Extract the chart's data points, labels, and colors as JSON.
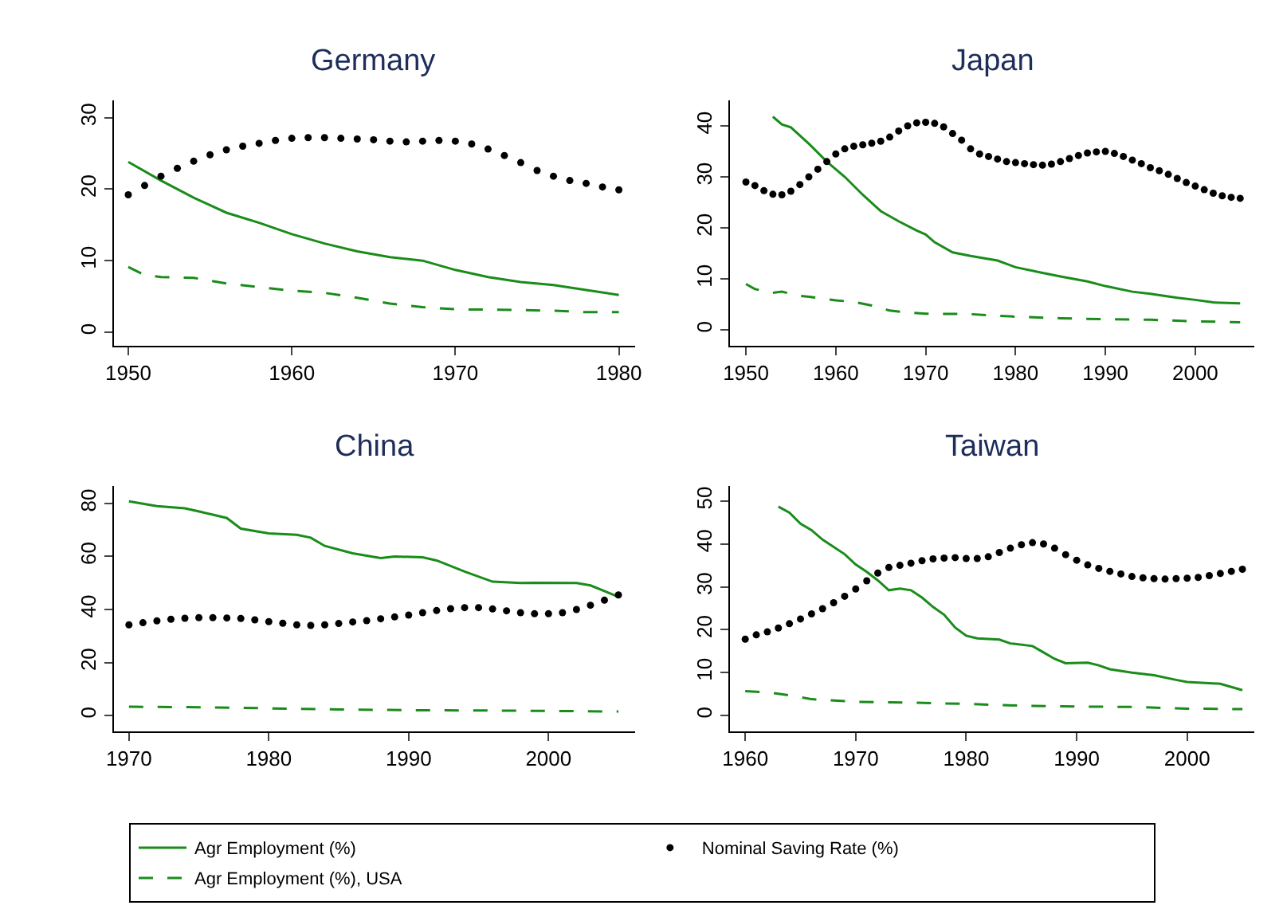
{
  "chart_data": [
    {
      "type": "line",
      "title": "Germany",
      "xlim": [
        1949.1,
        1981
      ],
      "xticks": [
        1950,
        1960,
        1970,
        1980
      ],
      "ylim": [
        -1.9,
        32.4
      ],
      "yticks": [
        0,
        10,
        20,
        30
      ],
      "grid": false,
      "legend": "bottom",
      "series": [
        {
          "name": "Agr Employment (%)",
          "type": "line",
          "line_style": "solid",
          "color": "#1a8c1a",
          "x": [
            1950,
            1952,
            1954,
            1956,
            1958,
            1960,
            1962,
            1964,
            1966,
            1968,
            1970,
            1972,
            1974,
            1976,
            1978,
            1980
          ],
          "values": [
            23.8,
            21.2,
            18.8,
            16.7,
            15.3,
            13.7,
            12.4,
            11.3,
            10.5,
            10.0,
            8.7,
            7.7,
            7.0,
            6.6,
            5.9,
            5.2
          ]
        },
        {
          "name": "Nominal Saving Rate (%)",
          "type": "scatter",
          "marker": "circle",
          "color": "#000000",
          "x": [
            1950,
            1951,
            1952,
            1953,
            1954,
            1955,
            1956,
            1957,
            1958,
            1959,
            1960,
            1961,
            1962,
            1963,
            1964,
            1965,
            1966,
            1967,
            1968,
            1969,
            1970,
            1971,
            1972,
            1973,
            1974,
            1975,
            1976,
            1977,
            1978,
            1979,
            1980
          ],
          "values": [
            19.2,
            20.5,
            21.8,
            22.9,
            23.9,
            24.8,
            25.5,
            26,
            26.4,
            26.8,
            27.1,
            27.2,
            27.2,
            27.1,
            27,
            26.9,
            26.7,
            26.6,
            26.7,
            26.8,
            26.7,
            26.3,
            25.6,
            24.7,
            23.7,
            22.6,
            21.8,
            21.2,
            20.8,
            20.3,
            19.9
          ]
        },
        {
          "name": "Agr Employment (%), USA",
          "type": "line",
          "line_style": "dashed",
          "color": "#1a8c1a",
          "x": [
            1950,
            1951,
            1952,
            1954,
            1956,
            1958,
            1960,
            1962,
            1964,
            1966,
            1968,
            1970,
            1974,
            1976,
            1978,
            1980
          ],
          "values": [
            9.1,
            8.0,
            7.7,
            7.6,
            6.8,
            6.3,
            5.8,
            5.5,
            4.8,
            4.0,
            3.5,
            3.2,
            3.1,
            3.0,
            2.8,
            2.8
          ]
        }
      ]
    },
    {
      "type": "line",
      "title": "Japan",
      "xlim": [
        1948.2,
        2006.6
      ],
      "xticks": [
        1950,
        1960,
        1970,
        1980,
        1990,
        2000
      ],
      "ylim": [
        -3.1,
        45
      ],
      "yticks": [
        0,
        10,
        20,
        30,
        40
      ],
      "grid": false,
      "series": [
        {
          "type": "line",
          "line_style": "solid",
          "color": "#1a8c1a",
          "x": [
            1953,
            1954,
            1955,
            1957,
            1959,
            1961,
            1963,
            1965,
            1967,
            1969,
            1970,
            1971,
            1973,
            1975,
            1978,
            1980,
            1983,
            1985,
            1988,
            1990,
            1993,
            1995,
            1998,
            2000,
            2002,
            2005
          ],
          "values": [
            41.8,
            40.3,
            39.7,
            36.5,
            33,
            30,
            26.5,
            23.3,
            21.3,
            19.5,
            18.7,
            17.2,
            15.2,
            14.5,
            13.6,
            12.3,
            11.2,
            10.5,
            9.5,
            8.6,
            7.5,
            7.1,
            6.3,
            5.9,
            5.4,
            5.2
          ]
        },
        {
          "type": "scatter",
          "marker": "circle",
          "color": "#000000",
          "x": [
            1950,
            1951,
            1952,
            1953,
            1954,
            1955,
            1956,
            1957,
            1958,
            1959,
            1960,
            1961,
            1962,
            1963,
            1964,
            1965,
            1966,
            1967,
            1968,
            1969,
            1970,
            1971,
            1972,
            1973,
            1974,
            1975,
            1976,
            1977,
            1978,
            1979,
            1980,
            1981,
            1982,
            1983,
            1984,
            1985,
            1986,
            1987,
            1988,
            1989,
            1990,
            1991,
            1992,
            1993,
            1994,
            1995,
            1996,
            1997,
            1998,
            1999,
            2000,
            2001,
            2002,
            2003,
            2004,
            2005
          ],
          "values": [
            29,
            28.3,
            27.3,
            26.6,
            26.5,
            27.2,
            28.5,
            30,
            31.5,
            33,
            34.5,
            35.5,
            36,
            36.3,
            36.6,
            37,
            37.8,
            39,
            40,
            40.6,
            40.7,
            40.5,
            39.8,
            38.5,
            37.2,
            35.5,
            34.5,
            34,
            33.5,
            33,
            32.8,
            32.6,
            32.4,
            32.3,
            32.5,
            33,
            33.6,
            34.2,
            34.7,
            34.9,
            35,
            34.6,
            34,
            33.3,
            32.6,
            31.8,
            31.2,
            30.5,
            29.7,
            28.9,
            28.2,
            27.5,
            26.8,
            26.3,
            26,
            25.8
          ]
        },
        {
          "type": "line",
          "line_style": "dashed",
          "color": "#1a8c1a",
          "x": [
            1950,
            1951,
            1953,
            1954,
            1956,
            1958,
            1960,
            1962,
            1964,
            1966,
            1968,
            1970,
            1975,
            1980,
            1985,
            1990,
            1995,
            2000,
            2005
          ],
          "values": [
            9,
            8,
            7.3,
            7.5,
            6.7,
            6.3,
            5.8,
            5.5,
            4.8,
            3.8,
            3.4,
            3.2,
            3.1,
            2.6,
            2.3,
            2.1,
            2.0,
            1.7,
            1.5
          ]
        }
      ]
    },
    {
      "type": "line",
      "title": "China",
      "xlim": [
        1968.9,
        2006.2
      ],
      "xticks": [
        1970,
        1980,
        1990,
        2000
      ],
      "ylim": [
        -6,
        86.6
      ],
      "yticks": [
        0,
        20,
        40,
        60,
        80
      ],
      "grid": false,
      "series": [
        {
          "type": "line",
          "line_style": "solid",
          "color": "#1a8c1a",
          "x": [
            1970,
            1972,
            1974,
            1976,
            1977,
            1978,
            1980,
            1982,
            1983,
            1984,
            1986,
            1988,
            1989,
            1991,
            1992,
            1994,
            1996,
            1998,
            1999,
            2002,
            2003,
            2005
          ],
          "values": [
            80.8,
            79,
            78.2,
            75.8,
            74.5,
            70.5,
            68.7,
            68.2,
            67.1,
            64,
            61.2,
            59.4,
            60,
            59.7,
            58.5,
            54.3,
            50.5,
            50,
            50.1,
            50,
            49.1,
            44.8
          ]
        },
        {
          "type": "scatter",
          "marker": "circle",
          "color": "#000000",
          "x": [
            1970,
            1971,
            1972,
            1973,
            1974,
            1975,
            1976,
            1977,
            1978,
            1979,
            1980,
            1981,
            1982,
            1983,
            1984,
            1985,
            1986,
            1987,
            1988,
            1989,
            1990,
            1991,
            1992,
            1993,
            1994,
            1995,
            1996,
            1997,
            1998,
            1999,
            2000,
            2001,
            2002,
            2003,
            2004,
            2005
          ],
          "values": [
            34.2,
            35,
            35.7,
            36.3,
            36.7,
            36.9,
            36.9,
            36.8,
            36.6,
            36.1,
            35.4,
            34.8,
            34.2,
            34,
            34.2,
            34.7,
            35.3,
            35.8,
            36.5,
            37.2,
            37.9,
            38.8,
            39.6,
            40.3,
            40.7,
            40.7,
            40.2,
            39.5,
            38.8,
            38.4,
            38.4,
            38.8,
            40,
            41.6,
            43.5,
            45.5
          ]
        },
        {
          "type": "line",
          "line_style": "dashed",
          "color": "#1a8c1a",
          "x": [
            1970,
            1975,
            1980,
            1985,
            1990,
            1995,
            2000,
            2005
          ],
          "values": [
            3.3,
            3.1,
            2.7,
            2.3,
            2,
            1.9,
            1.7,
            1.5
          ]
        }
      ]
    },
    {
      "type": "line",
      "title": "Taiwan",
      "xlim": [
        1958.6,
        2006.1
      ],
      "xticks": [
        1960,
        1970,
        1980,
        1990,
        2000
      ],
      "ylim": [
        -3.7,
        53.5
      ],
      "yticks": [
        0,
        10,
        20,
        30,
        40,
        50
      ],
      "grid": false,
      "series": [
        {
          "type": "line",
          "line_style": "solid",
          "color": "#1a8c1a",
          "x": [
            1963,
            1964,
            1965,
            1966,
            1967,
            1969,
            1970,
            1971,
            1972,
            1973,
            1974,
            1975,
            1976,
            1977,
            1978,
            1979,
            1980,
            1981,
            1983,
            1984,
            1986,
            1987,
            1988,
            1989,
            1991,
            1992,
            1993,
            1995,
            1997,
            1999,
            2000,
            2003,
            2005
          ],
          "values": [
            48.7,
            47.3,
            44.7,
            43.2,
            41,
            37.6,
            35.2,
            33.5,
            31.5,
            29.2,
            29.6,
            29.2,
            27.5,
            25.3,
            23.5,
            20.5,
            18.6,
            18,
            17.7,
            16.8,
            16.2,
            14.7,
            13.2,
            12.2,
            12.3,
            11.7,
            10.8,
            10,
            9.4,
            8.3,
            7.8,
            7.4,
            5.9
          ]
        },
        {
          "type": "scatter",
          "marker": "circle",
          "color": "#000000",
          "x": [
            1960,
            1961,
            1962,
            1963,
            1964,
            1965,
            1966,
            1967,
            1968,
            1969,
            1970,
            1971,
            1972,
            1973,
            1974,
            1975,
            1976,
            1977,
            1978,
            1979,
            1980,
            1981,
            1982,
            1983,
            1984,
            1985,
            1986,
            1987,
            1988,
            1989,
            1990,
            1991,
            1992,
            1993,
            1994,
            1995,
            1996,
            1997,
            1998,
            1999,
            2000,
            2001,
            2002,
            2003,
            2004,
            2005
          ],
          "values": [
            17.8,
            18.8,
            19.5,
            20.4,
            21.4,
            22.5,
            23.7,
            24.9,
            26.3,
            27.8,
            29.5,
            31.4,
            33.2,
            34.5,
            35,
            35.5,
            36.1,
            36.5,
            36.7,
            36.8,
            36.6,
            36.6,
            37,
            38,
            39,
            39.8,
            40.3,
            40,
            39,
            37.5,
            36.2,
            35.1,
            34.3,
            33.6,
            33,
            32.4,
            32.1,
            31.9,
            31.8,
            31.9,
            32,
            32.2,
            32.6,
            33.1,
            33.6,
            34.1
          ]
        },
        {
          "type": "line",
          "line_style": "dashed",
          "color": "#1a8c1a",
          "x": [
            1960,
            1962,
            1964,
            1966,
            1970,
            1975,
            1980,
            1985,
            1990,
            1995,
            2000,
            2005
          ],
          "values": [
            5.7,
            5.4,
            4.7,
            3.8,
            3.2,
            3,
            2.7,
            2.3,
            2.1,
            2,
            1.6,
            1.5
          ]
        }
      ]
    }
  ]
}
